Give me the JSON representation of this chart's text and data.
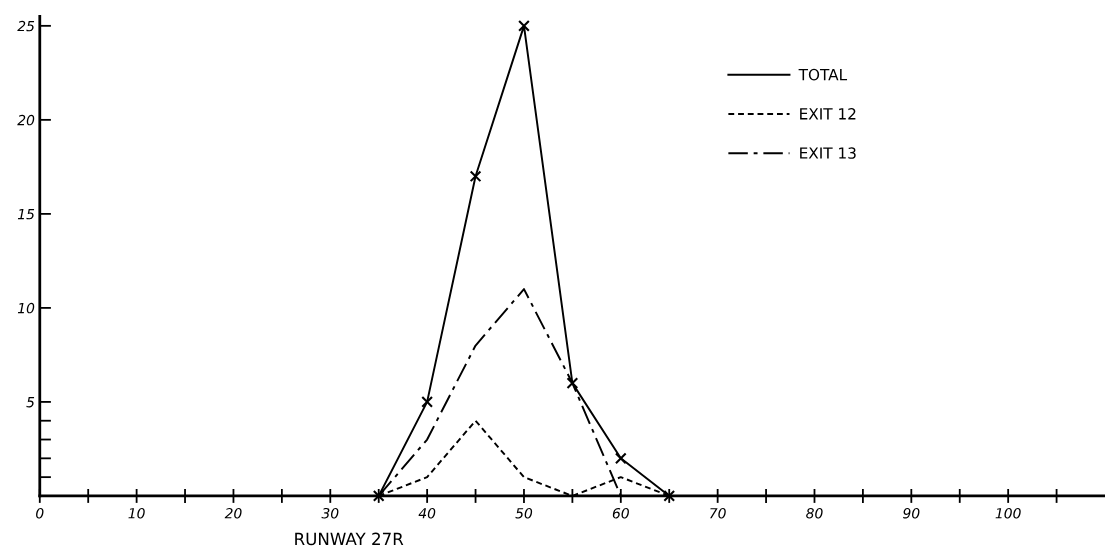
{
  "chart_data": {
    "type": "line",
    "xlabel": "RUNWAY 27R",
    "series": [
      {
        "name": "TOTAL",
        "color": "#000000",
        "line_style": "solid",
        "marker": "cross",
        "x": [
          35,
          40,
          45,
          50,
          55,
          60,
          65
        ],
        "values": [
          0,
          5,
          17,
          25,
          6,
          2,
          0
        ]
      },
      {
        "name": "EXIT 12",
        "color": "#000000",
        "line_style": "dashed",
        "marker": "none",
        "x": [
          35,
          40,
          45,
          50,
          55,
          60,
          65
        ],
        "values": [
          0,
          1,
          4,
          1,
          0,
          1,
          0
        ]
      },
      {
        "name": "EXIT 13",
        "color": "#000000",
        "line_style": "dashdot",
        "marker": "none",
        "x": [
          35,
          40,
          45,
          50,
          55,
          60
        ],
        "values": [
          0,
          3,
          8,
          11,
          6,
          0
        ]
      }
    ],
    "xlim": [
      0,
      110
    ],
    "xticks": [
      {
        "value": 0,
        "label": "0"
      },
      {
        "value": 5,
        "label": null
      },
      10,
      {
        "value": 15,
        "label": null
      },
      20,
      {
        "value": 25,
        "label": null
      },
      30,
      {
        "value": 35,
        "label": null
      },
      40,
      {
        "value": 45,
        "label": null
      },
      50,
      {
        "value": 55,
        "label": null
      },
      60,
      {
        "value": 65,
        "label": null
      },
      70,
      {
        "value": 75,
        "label": null
      },
      80,
      {
        "value": 85,
        "label": null
      },
      90,
      {
        "value": 95,
        "label": null
      },
      100,
      {
        "value": 105,
        "label": null
      }
    ],
    "ylim": [
      0,
      25.5
    ],
    "yticks": [
      {
        "value": 1,
        "label": null
      },
      {
        "value": 2,
        "label": null
      },
      {
        "value": 3,
        "label": null
      },
      {
        "value": 4,
        "label": null
      },
      5,
      10,
      15,
      20,
      25
    ],
    "grid": false,
    "legend": "top right"
  }
}
